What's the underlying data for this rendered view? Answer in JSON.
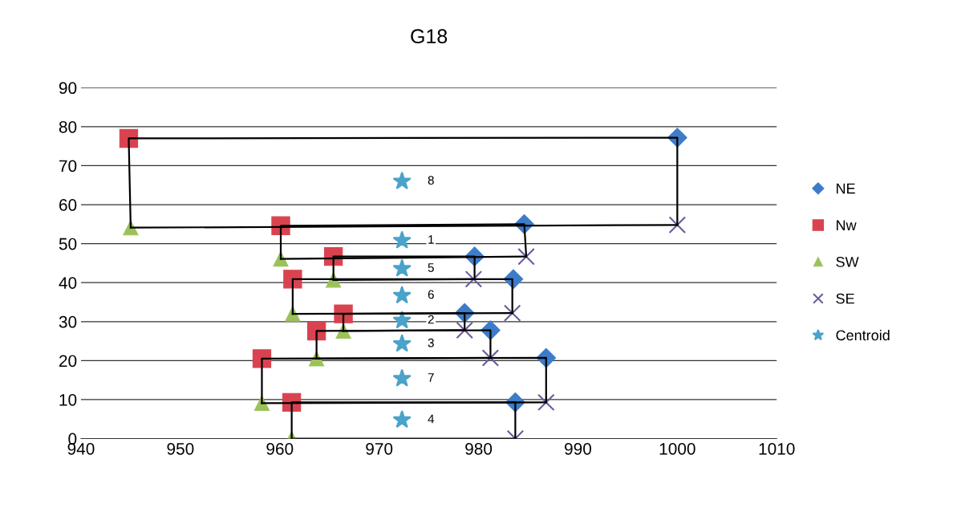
{
  "chart_data": {
    "type": "scatter",
    "title": "G18",
    "xlim": [
      940,
      1010
    ],
    "xticks": [
      940,
      950,
      960,
      970,
      980,
      990,
      1000,
      1010
    ],
    "ylim": [
      0,
      90
    ],
    "yticks": [
      0,
      10,
      20,
      30,
      40,
      50,
      60,
      70,
      80,
      90
    ],
    "grid": "y",
    "legend": "right",
    "series": [
      {
        "name": "NE",
        "color": "#3d7cc9",
        "marker": "diamond",
        "x": [
          1000,
          984.6,
          979.6,
          983.5,
          978.6,
          981.2,
          986.8,
          983.7
        ],
        "values": [
          77.2,
          55.0,
          46.7,
          40.9,
          32.2,
          27.8,
          20.7,
          9.3
        ]
      },
      {
        "name": "Nw",
        "color": "#d9434f",
        "marker": "square",
        "x": [
          944.8,
          960.1,
          965.4,
          961.3,
          966.4,
          963.7,
          958.2,
          961.2
        ],
        "values": [
          77.0,
          54.6,
          46.7,
          40.9,
          32.0,
          27.6,
          20.5,
          9.3
        ]
      },
      {
        "name": "SW",
        "color": "#9bc25a",
        "marker": "triangle",
        "x": [
          945.0,
          960.1,
          965.4,
          961.3,
          966.4,
          963.7,
          958.2,
          961.2
        ],
        "values": [
          54.1,
          46.1,
          40.7,
          32.0,
          27.6,
          20.5,
          9.1,
          0
        ]
      },
      {
        "name": "SE",
        "color": "#6a5a9c",
        "marker": "cross",
        "x": [
          1000,
          984.8,
          979.5,
          983.4,
          978.6,
          981.2,
          986.8,
          983.7
        ],
        "values": [
          54.8,
          46.7,
          40.9,
          32.2,
          27.8,
          20.7,
          9.3,
          0
        ]
      },
      {
        "name": "Centroid",
        "color": "#4aa3c9",
        "marker": "star",
        "x": [
          972.3,
          972.3,
          972.3,
          972.3,
          972.3,
          972.3,
          972.3,
          972.3
        ],
        "values": [
          66.0,
          50.8,
          43.6,
          36.7,
          30.3,
          24.3,
          15.4,
          4.8
        ]
      },
      {
        "type": "line",
        "color": "#000000",
        "marker": "none",
        "x": [
          945.0,
          944.8,
          1000,
          1000
        ],
        "values": [
          54.1,
          77.0,
          77.2,
          54.8
        ]
      },
      {
        "type": "line",
        "color": "#000000",
        "marker": "none",
        "x": [
          945.0,
          1000
        ],
        "values": [
          54.1,
          54.8
        ]
      },
      {
        "type": "line",
        "color": "#000000",
        "marker": "none",
        "x": [
          960.1,
          960.1,
          984.6,
          984.8
        ],
        "values": [
          46.1,
          54.6,
          55.0,
          46.7
        ]
      },
      {
        "type": "line",
        "color": "#000000",
        "marker": "none",
        "x": [
          960.1,
          984.8
        ],
        "values": [
          46.1,
          46.7
        ]
      },
      {
        "type": "line",
        "color": "#000000",
        "marker": "none",
        "x": [
          965.4,
          965.4,
          979.6,
          979.6
        ],
        "values": [
          40.7,
          46.7,
          46.7,
          40.9
        ]
      },
      {
        "type": "line",
        "color": "#000000",
        "marker": "none",
        "x": [
          965.4,
          979.6
        ],
        "values": [
          40.7,
          40.9
        ]
      },
      {
        "type": "line",
        "color": "#000000",
        "marker": "none",
        "x": [
          961.3,
          961.3,
          983.4,
          983.4
        ],
        "values": [
          32.0,
          40.9,
          40.9,
          32.2
        ]
      },
      {
        "type": "line",
        "color": "#000000",
        "marker": "none",
        "x": [
          961.3,
          983.4
        ],
        "values": [
          32.0,
          32.2
        ]
      },
      {
        "type": "line",
        "color": "#000000",
        "marker": "none",
        "x": [
          966.4,
          966.4,
          978.6,
          978.6
        ],
        "values": [
          27.6,
          32.0,
          32.2,
          27.8
        ]
      },
      {
        "type": "line",
        "color": "#000000",
        "marker": "none",
        "x": [
          966.4,
          978.6
        ],
        "values": [
          27.6,
          27.8
        ]
      },
      {
        "type": "line",
        "color": "#000000",
        "marker": "none",
        "x": [
          963.7,
          963.7,
          981.2,
          981.2
        ],
        "values": [
          20.5,
          27.6,
          27.8,
          20.7
        ]
      },
      {
        "type": "line",
        "color": "#000000",
        "marker": "none",
        "x": [
          963.7,
          981.2
        ],
        "values": [
          20.5,
          20.7
        ]
      },
      {
        "type": "line",
        "color": "#000000",
        "marker": "none",
        "x": [
          958.2,
          958.2,
          986.8,
          986.8
        ],
        "values": [
          9.1,
          20.5,
          20.7,
          9.3
        ]
      },
      {
        "type": "line",
        "color": "#000000",
        "marker": "none",
        "x": [
          958.2,
          986.8
        ],
        "values": [
          9.1,
          9.3
        ]
      },
      {
        "type": "line",
        "color": "#000000",
        "marker": "none",
        "x": [
          961.2,
          961.2,
          983.7,
          983.7
        ],
        "values": [
          0,
          9.3,
          9.3,
          0
        ]
      },
      {
        "type": "line",
        "color": "#000000",
        "marker": "none",
        "x": [
          961.2,
          983.7
        ],
        "values": [
          0,
          0
        ]
      }
    ],
    "annotations": [
      "8",
      "1",
      "5",
      "6",
      "2",
      "3",
      "7",
      "4"
    ]
  }
}
